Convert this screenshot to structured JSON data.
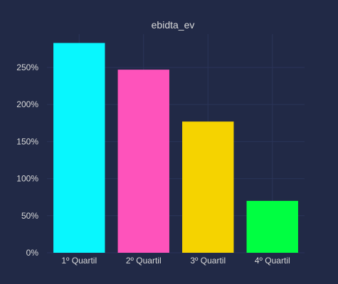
{
  "chart_data": {
    "type": "bar",
    "title": "ebidta_ev",
    "categories": [
      "1º Quartil",
      "2º Quartil",
      "3º Quartil",
      "4º Quartil"
    ],
    "values": [
      283,
      247,
      177,
      70
    ],
    "value_unit": "%",
    "bar_colors": [
      "#08F7FE",
      "#FE53BB",
      "#F5D300",
      "#00FF41"
    ],
    "ylim": [
      0,
      295
    ],
    "yticks": [
      0,
      50,
      100,
      150,
      200,
      250
    ],
    "ytick_labels": [
      "0%",
      "50%",
      "100%",
      "150%",
      "200%",
      "250%"
    ],
    "grid": true,
    "colors": {
      "background": "#212946",
      "grid": "#2A3459",
      "text": "#D9D9D9"
    }
  }
}
